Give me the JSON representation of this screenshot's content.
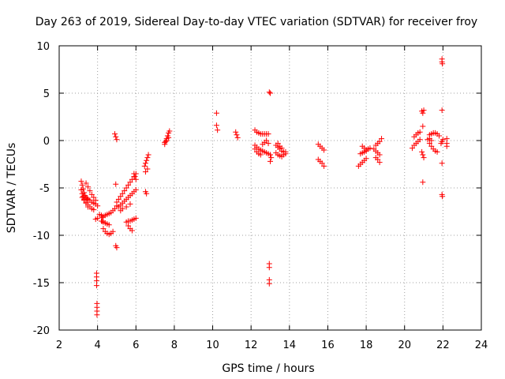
{
  "chart_data": {
    "type": "scatter",
    "title": "Day 263 of 2019, Sidereal Day-to-day VTEC variation (SDTVAR) for receiver froy",
    "xlabel": "GPS time / hours",
    "ylabel": "SDTVAR / TECUs",
    "xlim": [
      2,
      24
    ],
    "ylim": [
      -20,
      10
    ],
    "xticks": [
      2,
      4,
      6,
      8,
      10,
      12,
      14,
      16,
      18,
      20,
      22,
      24
    ],
    "yticks": [
      -20,
      -15,
      -10,
      -5,
      0,
      5,
      10
    ],
    "grid": true,
    "marker": "plus",
    "color": "#ff0000",
    "series": [
      {
        "name": "SDTVAR",
        "points": [
          [
            3.15,
            -4.3
          ],
          [
            3.2,
            -4.7
          ],
          [
            3.25,
            -5.1
          ],
          [
            3.3,
            -5.5
          ],
          [
            3.35,
            -5.8
          ],
          [
            3.4,
            -6.0
          ],
          [
            3.45,
            -6.1
          ],
          [
            3.5,
            -6.2
          ],
          [
            3.6,
            -6.3
          ],
          [
            3.7,
            -6.5
          ],
          [
            3.8,
            -6.6
          ],
          [
            3.9,
            -6.7
          ],
          [
            4.0,
            -6.9
          ],
          [
            3.15,
            -5.2
          ],
          [
            3.2,
            -5.6
          ],
          [
            3.25,
            -5.9
          ],
          [
            3.3,
            -6.2
          ],
          [
            3.4,
            -6.5
          ],
          [
            3.5,
            -6.8
          ],
          [
            3.6,
            -7.0
          ],
          [
            3.7,
            -7.2
          ],
          [
            3.8,
            -7.3
          ],
          [
            3.2,
            -6.0
          ],
          [
            3.3,
            -6.3
          ],
          [
            3.4,
            -6.6
          ],
          [
            3.5,
            -7.0
          ],
          [
            3.4,
            -4.5
          ],
          [
            3.5,
            -4.9
          ],
          [
            3.6,
            -5.3
          ],
          [
            3.7,
            -5.7
          ],
          [
            3.8,
            -6.0
          ],
          [
            3.9,
            -6.3
          ],
          [
            3.9,
            -8.3
          ],
          [
            4.0,
            -8.2
          ],
          [
            3.95,
            -14.0
          ],
          [
            3.95,
            -14.4
          ],
          [
            3.95,
            -14.8
          ],
          [
            3.95,
            -15.3
          ],
          [
            3.97,
            -17.2
          ],
          [
            3.97,
            -17.6
          ],
          [
            3.97,
            -18.0
          ],
          [
            3.97,
            -18.4
          ],
          [
            4.1,
            -7.8
          ],
          [
            4.2,
            -7.9
          ],
          [
            4.3,
            -8.0
          ],
          [
            4.4,
            -7.9
          ],
          [
            4.5,
            -7.8
          ],
          [
            4.6,
            -7.7
          ],
          [
            4.7,
            -7.6
          ],
          [
            4.8,
            -7.4
          ],
          [
            4.9,
            -7.2
          ],
          [
            5.0,
            -6.9
          ],
          [
            4.2,
            -8.5
          ],
          [
            4.3,
            -8.6
          ],
          [
            4.4,
            -8.7
          ],
          [
            4.5,
            -8.8
          ],
          [
            4.6,
            -8.9
          ],
          [
            4.3,
            -9.3
          ],
          [
            4.4,
            -9.6
          ],
          [
            4.5,
            -9.8
          ],
          [
            4.6,
            -9.9
          ],
          [
            4.7,
            -9.8
          ],
          [
            4.8,
            -9.6
          ],
          [
            4.25,
            -8.1
          ],
          [
            4.25,
            -8.5
          ],
          [
            4.95,
            -4.6
          ],
          [
            4.9,
            0.7
          ],
          [
            4.95,
            0.4
          ],
          [
            5.0,
            0.1
          ],
          [
            4.95,
            -11.1
          ],
          [
            5.0,
            -11.3
          ],
          [
            5.0,
            -6.5
          ],
          [
            5.1,
            -6.2
          ],
          [
            5.2,
            -5.9
          ],
          [
            5.3,
            -5.6
          ],
          [
            5.4,
            -5.3
          ],
          [
            5.5,
            -5.0
          ],
          [
            5.6,
            -4.7
          ],
          [
            5.7,
            -4.4
          ],
          [
            5.8,
            -4.1
          ],
          [
            5.9,
            -3.8
          ],
          [
            6.0,
            -3.5
          ],
          [
            5.1,
            -7.0
          ],
          [
            5.2,
            -6.8
          ],
          [
            5.3,
            -6.6
          ],
          [
            5.4,
            -6.4
          ],
          [
            5.5,
            -6.2
          ],
          [
            5.6,
            -6.0
          ],
          [
            5.7,
            -5.8
          ],
          [
            5.8,
            -5.6
          ],
          [
            5.9,
            -5.4
          ],
          [
            6.0,
            -5.2
          ],
          [
            5.2,
            -7.4
          ],
          [
            5.3,
            -7.2
          ],
          [
            5.5,
            -7.0
          ],
          [
            5.7,
            -6.7
          ],
          [
            5.5,
            -8.6
          ],
          [
            5.6,
            -8.5
          ],
          [
            5.7,
            -8.5
          ],
          [
            5.8,
            -8.4
          ],
          [
            5.9,
            -8.3
          ],
          [
            6.0,
            -8.2
          ],
          [
            5.6,
            -9.0
          ],
          [
            5.7,
            -9.3
          ],
          [
            5.8,
            -9.5
          ],
          [
            5.9,
            -3.5
          ],
          [
            5.95,
            -3.8
          ],
          [
            6.0,
            -4.1
          ],
          [
            6.45,
            -2.7
          ],
          [
            6.5,
            -2.4
          ],
          [
            6.55,
            -2.1
          ],
          [
            6.6,
            -1.8
          ],
          [
            6.65,
            -1.5
          ],
          [
            6.5,
            -3.3
          ],
          [
            6.6,
            -3.0
          ],
          [
            6.5,
            -5.4
          ],
          [
            6.55,
            -5.6
          ],
          [
            7.5,
            -0.4
          ],
          [
            7.55,
            -0.1
          ],
          [
            7.6,
            0.2
          ],
          [
            7.65,
            0.5
          ],
          [
            7.7,
            0.8
          ],
          [
            7.75,
            1.0
          ],
          [
            7.5,
            -0.2
          ],
          [
            7.6,
            0.0
          ],
          [
            7.7,
            0.3
          ],
          [
            10.2,
            2.9
          ],
          [
            10.2,
            1.6
          ],
          [
            10.25,
            1.1
          ],
          [
            11.2,
            0.9
          ],
          [
            11.25,
            0.6
          ],
          [
            11.3,
            0.3
          ],
          [
            12.2,
            1.1
          ],
          [
            12.3,
            0.9
          ],
          [
            12.4,
            0.8
          ],
          [
            12.5,
            0.7
          ],
          [
            12.6,
            0.7
          ],
          [
            12.7,
            0.7
          ],
          [
            12.8,
            0.7
          ],
          [
            12.9,
            0.7
          ],
          [
            12.2,
            -0.5
          ],
          [
            12.3,
            -0.7
          ],
          [
            12.4,
            -0.9
          ],
          [
            12.5,
            -1.0
          ],
          [
            12.6,
            -1.1
          ],
          [
            12.7,
            -1.2
          ],
          [
            12.8,
            -1.3
          ],
          [
            12.9,
            -1.4
          ],
          [
            13.0,
            -1.5
          ],
          [
            12.2,
            -0.9
          ],
          [
            12.3,
            -1.2
          ],
          [
            12.4,
            -1.4
          ],
          [
            12.5,
            -1.5
          ],
          [
            12.6,
            -0.4
          ],
          [
            12.7,
            -0.2
          ],
          [
            12.8,
            0.0
          ],
          [
            12.9,
            -0.3
          ],
          [
            13.0,
            -2.2
          ],
          [
            13.05,
            -1.8
          ],
          [
            12.95,
            5.1
          ],
          [
            13.0,
            5.0
          ],
          [
            12.95,
            -13.0
          ],
          [
            12.95,
            -13.4
          ],
          [
            12.95,
            -14.7
          ],
          [
            12.95,
            -15.1
          ],
          [
            13.3,
            -0.5
          ],
          [
            13.4,
            -0.7
          ],
          [
            13.5,
            -0.9
          ],
          [
            13.6,
            -1.1
          ],
          [
            13.7,
            -1.2
          ],
          [
            13.8,
            -1.4
          ],
          [
            13.3,
            -1.3
          ],
          [
            13.4,
            -1.5
          ],
          [
            13.5,
            -1.6
          ],
          [
            13.6,
            -1.7
          ],
          [
            13.7,
            -1.5
          ],
          [
            13.8,
            -1.2
          ],
          [
            13.4,
            -0.3
          ],
          [
            13.5,
            -0.6
          ],
          [
            13.6,
            -0.8
          ],
          [
            15.5,
            -0.4
          ],
          [
            15.6,
            -0.6
          ],
          [
            15.7,
            -0.8
          ],
          [
            15.8,
            -1.0
          ],
          [
            15.5,
            -2.0
          ],
          [
            15.6,
            -2.2
          ],
          [
            15.7,
            -2.4
          ],
          [
            15.8,
            -2.7
          ],
          [
            17.6,
            -2.7
          ],
          [
            17.7,
            -2.5
          ],
          [
            17.8,
            -2.3
          ],
          [
            17.9,
            -2.1
          ],
          [
            18.0,
            -1.9
          ],
          [
            17.7,
            -1.4
          ],
          [
            17.8,
            -1.3
          ],
          [
            17.9,
            -1.2
          ],
          [
            18.0,
            -1.1
          ],
          [
            18.1,
            -0.9
          ],
          [
            18.2,
            -0.8
          ],
          [
            17.8,
            -0.6
          ],
          [
            17.9,
            -0.8
          ],
          [
            18.0,
            -1.0
          ],
          [
            18.4,
            -0.9
          ],
          [
            18.5,
            -1.1
          ],
          [
            18.6,
            -1.3
          ],
          [
            18.7,
            -1.5
          ],
          [
            18.5,
            -0.5
          ],
          [
            18.6,
            -0.3
          ],
          [
            18.7,
            -0.1
          ],
          [
            18.8,
            0.2
          ],
          [
            18.5,
            -1.8
          ],
          [
            18.6,
            -2.0
          ],
          [
            18.7,
            -2.3
          ],
          [
            20.4,
            -0.8
          ],
          [
            20.5,
            -0.5
          ],
          [
            20.6,
            -0.3
          ],
          [
            20.7,
            -0.1
          ],
          [
            20.8,
            0.1
          ],
          [
            20.5,
            0.4
          ],
          [
            20.6,
            0.6
          ],
          [
            20.7,
            0.8
          ],
          [
            20.8,
            0.9
          ],
          [
            20.9,
            -1.2
          ],
          [
            20.95,
            -1.5
          ],
          [
            21.0,
            -1.8
          ],
          [
            20.9,
            3.1
          ],
          [
            20.95,
            2.9
          ],
          [
            21.0,
            3.2
          ],
          [
            20.95,
            1.5
          ],
          [
            20.95,
            -4.4
          ],
          [
            21.3,
            -0.3
          ],
          [
            21.4,
            -0.6
          ],
          [
            21.5,
            -0.9
          ],
          [
            21.6,
            -1.1
          ],
          [
            21.7,
            -1.2
          ],
          [
            21.3,
            0.6
          ],
          [
            21.4,
            0.7
          ],
          [
            21.5,
            0.8
          ],
          [
            21.6,
            0.8
          ],
          [
            21.7,
            0.7
          ],
          [
            21.8,
            0.5
          ],
          [
            21.2,
            0.1
          ],
          [
            21.3,
            0.2
          ],
          [
            21.4,
            0.0
          ],
          [
            21.9,
            -0.3
          ],
          [
            21.95,
            -0.1
          ],
          [
            22.0,
            0.1
          ],
          [
            21.95,
            8.6
          ],
          [
            21.95,
            8.3
          ],
          [
            21.97,
            8.1
          ],
          [
            21.95,
            3.2
          ],
          [
            21.95,
            -2.4
          ],
          [
            21.95,
            -5.7
          ],
          [
            21.97,
            -5.9
          ],
          [
            22.2,
            0.2
          ],
          [
            22.2,
            -0.3
          ],
          [
            22.2,
            -0.6
          ]
        ]
      }
    ]
  }
}
